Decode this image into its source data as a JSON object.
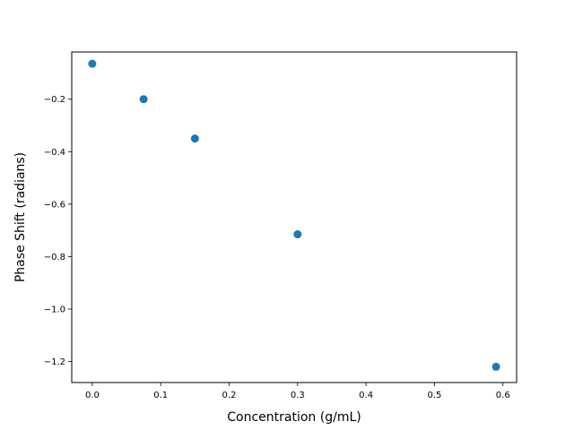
{
  "chart_data": {
    "type": "scatter",
    "title": "",
    "xlabel": "Concentration (g/mL)",
    "ylabel": "Phase Shift (radians)",
    "xlim": [
      -0.03,
      0.62
    ],
    "ylim": [
      -1.28,
      -0.02
    ],
    "x_ticks": [
      0.0,
      0.1,
      0.2,
      0.3,
      0.4,
      0.5,
      0.6
    ],
    "x_tick_labels": [
      "0.0",
      "0.1",
      "0.2",
      "0.3",
      "0.4",
      "0.5",
      "0.6"
    ],
    "y_ticks": [
      -0.2,
      -0.4,
      -0.6,
      -0.8,
      -1.0,
      -1.2
    ],
    "y_tick_labels": [
      "−0.2",
      "−0.4",
      "−0.6",
      "−0.8",
      "−1.0",
      "−1.2"
    ],
    "grid": false,
    "series": [
      {
        "color": "#1f77b4",
        "points": [
          {
            "x": 0.0,
            "y": -0.065
          },
          {
            "x": 0.075,
            "y": -0.2
          },
          {
            "x": 0.15,
            "y": -0.35
          },
          {
            "x": 0.3,
            "y": -0.715
          },
          {
            "x": 0.59,
            "y": -1.22
          }
        ]
      }
    ]
  }
}
